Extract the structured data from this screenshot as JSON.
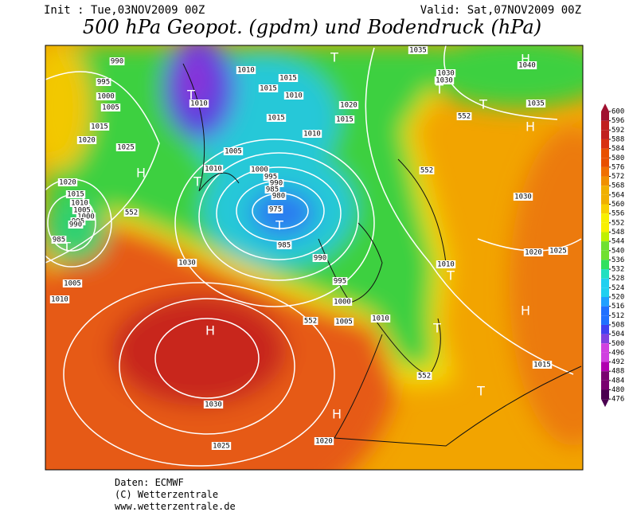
{
  "header": {
    "init": "Init : Tue,03NOV2009 00Z",
    "valid": "Valid: Sat,07NOV2009 00Z",
    "title": "500 hPa Geopot. (gpdm) und Bodendruck (hPa)"
  },
  "colorbar": {
    "levels": [
      600,
      596,
      592,
      588,
      584,
      580,
      576,
      572,
      568,
      564,
      560,
      556,
      552,
      548,
      544,
      540,
      536,
      532,
      528,
      524,
      520,
      516,
      512,
      508,
      504,
      500,
      496,
      492,
      488,
      484,
      480,
      476
    ]
  },
  "map": {
    "isobar_labels": [
      "990",
      "995",
      "1000",
      "1005",
      "1015",
      "1020",
      "1025",
      "1010",
      "1010",
      "1015",
      "1015",
      "1010",
      "1015",
      "1020",
      "1015",
      "1010",
      "1005",
      "1010",
      "1000",
      "995",
      "990",
      "985",
      "980",
      "975",
      "985",
      "990",
      "995",
      "1000",
      "1005",
      "1010",
      "1020",
      "1015",
      "1010",
      "1005",
      "1000",
      "995",
      "990",
      "985",
      "1005",
      "1010",
      "1030",
      "1030",
      "1025",
      "1020",
      "1035",
      "1030",
      "1030",
      "1040",
      "1035",
      "1030",
      "1020",
      "1025",
      "1010",
      "1015"
    ],
    "height_labels": [
      "552",
      "552",
      "552",
      "552",
      "552"
    ],
    "pressure_centers": [
      "T",
      "H",
      "T",
      "T",
      "H",
      "T",
      "T",
      "H",
      "T",
      "T",
      "H",
      "T",
      "H",
      "T",
      "T",
      "H"
    ]
  },
  "footer": {
    "data": "Daten: ECMWF",
    "copyright": "(C) Wetterzentrale",
    "url": "www.wetterzentrale.de"
  }
}
